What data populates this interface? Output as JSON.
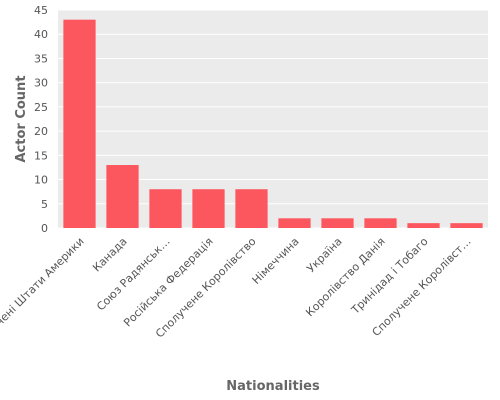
{
  "chart_data": {
    "type": "bar",
    "categories": [
      "Сполучені Штати Америки",
      "Канада",
      "Союз Радянськ…",
      "Російська Федерація",
      "Сполучене Королівство",
      "Німеччина",
      "Україна",
      "Королівство Данія",
      "Тринідад і Тобаго",
      "Сполучене Королівст…"
    ],
    "values": [
      43,
      13,
      8,
      8,
      8,
      2,
      2,
      2,
      1,
      1
    ],
    "xlabel": "Nationalities",
    "ylabel": "Actor Count",
    "ylim": [
      0,
      45
    ],
    "yticks": [
      0,
      5,
      10,
      15,
      20,
      25,
      30,
      35,
      40,
      45
    ],
    "grid": true,
    "colors": {
      "bar": "#fc575e",
      "plot_bg": "#ebebeb",
      "grid": "#ffffff"
    }
  }
}
